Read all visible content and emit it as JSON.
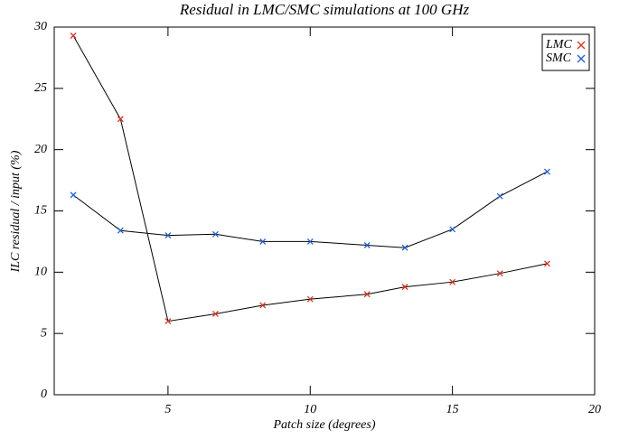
{
  "chart_data": {
    "type": "line",
    "title": "Residual in LMC/SMC simulations at 100 GHz",
    "x_label": "Patch size (degrees)",
    "y_label": "ILC residual / input (%)",
    "x": [
      1.67,
      3.33,
      5,
      6.67,
      8.33,
      10,
      12,
      13.33,
      15,
      16.67,
      18.33
    ],
    "series": [
      {
        "name": "LMC",
        "color": "#e0301e",
        "values": [
          29.3,
          22.5,
          6.0,
          6.6,
          7.3,
          7.8,
          8.2,
          8.8,
          9.2,
          9.9,
          10.7
        ]
      },
      {
        "name": "SMC",
        "color": "#1f5fd6",
        "values": [
          16.3,
          13.4,
          13.0,
          13.1,
          12.5,
          12.5,
          12.2,
          12.0,
          13.5,
          16.2,
          18.2
        ]
      }
    ],
    "xlim": [
      1,
      20
    ],
    "xticks": [
      5,
      10,
      15,
      20
    ],
    "ylim": [
      0,
      30
    ],
    "yticks": [
      0,
      5,
      10,
      15,
      20,
      25,
      30
    ],
    "legend": "top-right",
    "line_color": "#000000"
  }
}
